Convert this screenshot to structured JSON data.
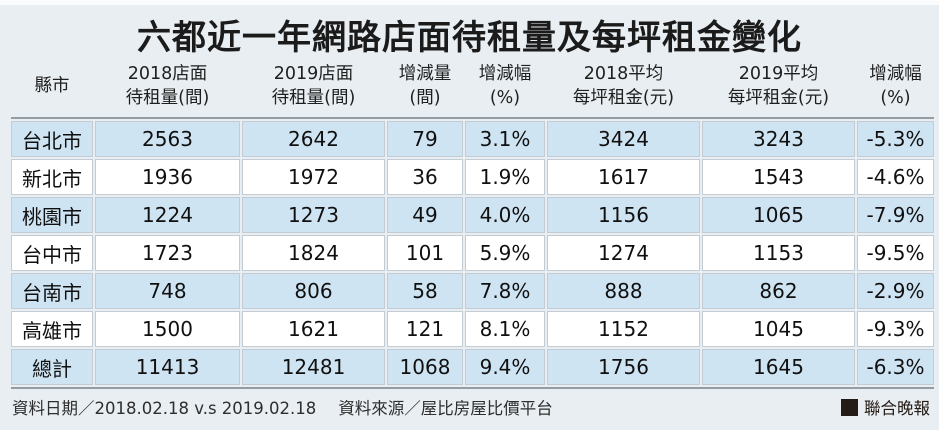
{
  "title": "六都近一年網路店面待租量及每坪租金變化",
  "chart_data": {
    "type": "table",
    "title": "六都近一年網路店面待租量及每坪租金變化",
    "columns": [
      "縣市",
      "2018店面待租量(間)",
      "2019店面待租量(間)",
      "增減量(間)",
      "增減幅(%)",
      "2018平均每坪租金(元)",
      "2019平均每坪租金(元)",
      "增減幅(%)"
    ],
    "columns_display": [
      "縣市",
      "2018店面\n待租量(間)",
      "2019店面\n待租量(間)",
      "增減量\n(間)",
      "增減幅\n(%)",
      "2018平均\n每坪租金(元)",
      "2019平均\n每坪租金(元)",
      "增減幅\n(%)"
    ],
    "rows": [
      [
        "台北市",
        "2563",
        "2642",
        "79",
        "3.1%",
        "3424",
        "3243",
        "-5.3%"
      ],
      [
        "新北市",
        "1936",
        "1972",
        "36",
        "1.9%",
        "1617",
        "1543",
        "-4.6%"
      ],
      [
        "桃園市",
        "1224",
        "1273",
        "49",
        "4.0%",
        "1156",
        "1065",
        "-7.9%"
      ],
      [
        "台中市",
        "1723",
        "1824",
        "101",
        "5.9%",
        "1274",
        "1153",
        "-9.5%"
      ],
      [
        "台南市",
        "748",
        "806",
        "58",
        "7.8%",
        "888",
        "862",
        "-2.9%"
      ],
      [
        "高雄市",
        "1500",
        "1621",
        "121",
        "8.1%",
        "1152",
        "1045",
        "-9.3%"
      ],
      [
        "總計",
        "11413",
        "12481",
        "1068",
        "9.4%",
        "1756",
        "1645",
        "-6.3%"
      ]
    ]
  },
  "footer": {
    "date_label": "資料日期／2018.02.18 v.s 2019.02.18",
    "source_label": "資料來源／屋比房屋比價平台",
    "brand": "聯合晚報"
  },
  "colors": {
    "background": "#e8eef1",
    "row_highlight": "#cfe4f3",
    "row_plain": "#ffffff",
    "rule_line": "#949da3",
    "cell_border": "#c2ccd2",
    "brand_square": "#241a16"
  }
}
